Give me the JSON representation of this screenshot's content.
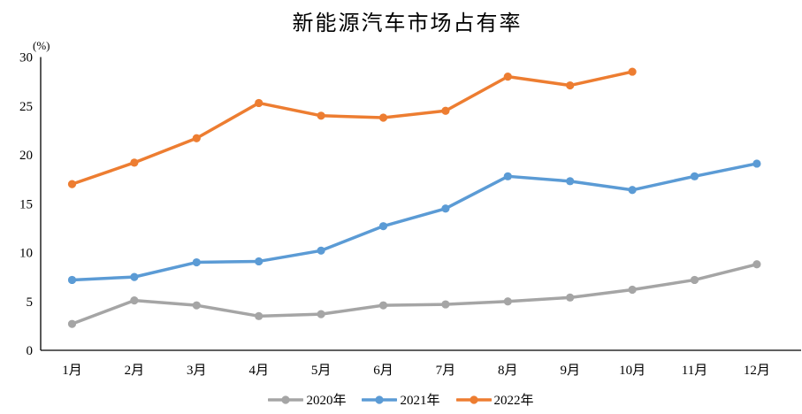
{
  "chart_data": {
    "type": "line",
    "title": "新能源汽车市场占有率",
    "unit_label": "(%)",
    "xlabel": "",
    "ylabel": "(%)",
    "categories": [
      "1月",
      "2月",
      "3月",
      "4月",
      "5月",
      "6月",
      "7月",
      "8月",
      "9月",
      "10月",
      "11月",
      "12月"
    ],
    "series": [
      {
        "name": "2020年",
        "color": "#A5A5A5",
        "values": [
          2.7,
          5.1,
          4.6,
          3.5,
          3.7,
          4.6,
          4.7,
          5.0,
          5.4,
          6.2,
          7.2,
          8.8
        ]
      },
      {
        "name": "2021年",
        "color": "#5B9BD5",
        "values": [
          7.2,
          7.5,
          9.0,
          9.1,
          10.2,
          12.7,
          14.5,
          17.8,
          17.3,
          16.4,
          17.8,
          19.1
        ]
      },
      {
        "name": "2022年",
        "color": "#ED7D31",
        "values": [
          17.0,
          19.2,
          21.7,
          25.3,
          24.0,
          23.8,
          24.5,
          28.0,
          27.1,
          28.5
        ]
      }
    ],
    "ylim": [
      0,
      30
    ],
    "ytick_interval": 5,
    "grid": false,
    "legend_position": "bottom",
    "axis_color": "#000000",
    "background": "#FFFFFF"
  }
}
